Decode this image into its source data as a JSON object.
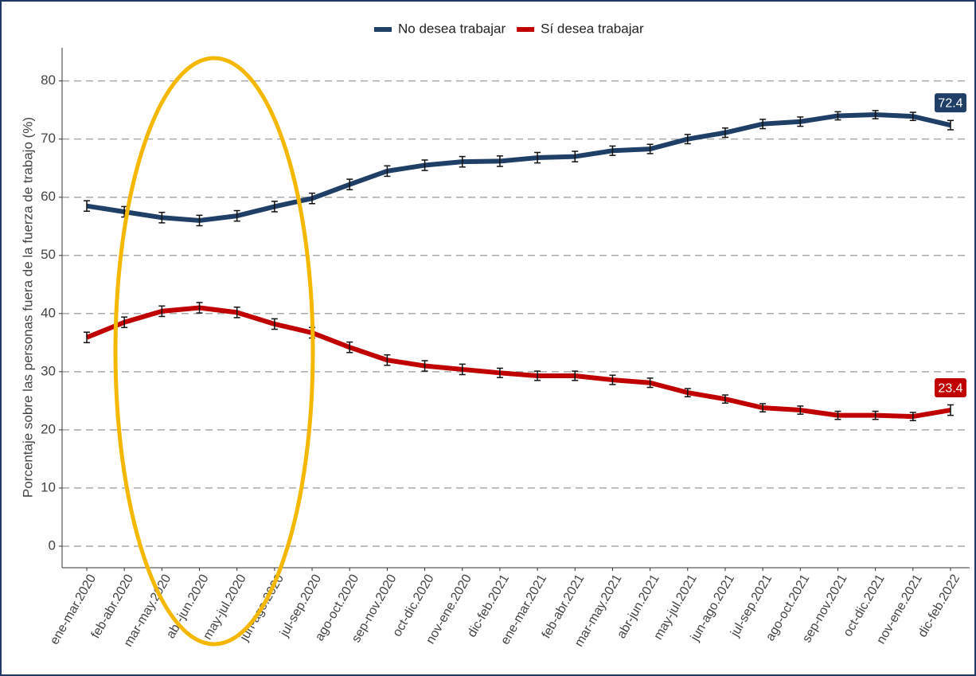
{
  "chart_data": {
    "type": "line",
    "y_label": "Porcentaje sobre las personas fuera de la fuerza de trabajo (%)",
    "categories": [
      "ene-mar.2020",
      "feb-abr.2020",
      "mar-may.2020",
      "abr-jun.2020",
      "may-jul.2020",
      "jun-ago.2020",
      "jul-sep.2020",
      "ago-oct.2020",
      "sep-nov.2020",
      "oct-dic.2020",
      "nov-ene.2020",
      "dic-feb.2021",
      "ene-mar.2021",
      "feb-abr.2021",
      "mar-may.2021",
      "abr-jun.2021",
      "may-jul.2021",
      "jun-ago.2021",
      "jul-sep.2021",
      "ago-oct.2021",
      "sep-nov.2021",
      "oct-dic.2021",
      "nov-ene.2021",
      "dic-feb.2022"
    ],
    "series": [
      {
        "name": "No desea trabajar",
        "color": "#1f3f66",
        "values": [
          58.5,
          57.5,
          56.5,
          56.0,
          56.8,
          58.4,
          59.8,
          62.2,
          64.5,
          65.5,
          66.1,
          66.2,
          66.8,
          67.0,
          68.0,
          68.3,
          70.0,
          71.1,
          72.6,
          73.0,
          74.0,
          74.2,
          73.9,
          72.4
        ],
        "errors": [
          0.9,
          0.9,
          0.9,
          0.9,
          0.9,
          0.9,
          0.9,
          0.9,
          0.9,
          0.9,
          0.9,
          0.9,
          0.9,
          0.9,
          0.8,
          0.8,
          0.8,
          0.8,
          0.8,
          0.8,
          0.7,
          0.7,
          0.7,
          0.8
        ]
      },
      {
        "name": "Sí desea trabajar",
        "color": "#c00000",
        "values": [
          35.9,
          38.5,
          40.4,
          41.0,
          40.2,
          38.2,
          36.7,
          34.2,
          32.0,
          31.0,
          30.4,
          29.8,
          29.3,
          29.3,
          28.6,
          28.1,
          26.4,
          25.3,
          23.8,
          23.4,
          22.5,
          22.5,
          22.3,
          23.4
        ],
        "errors": [
          0.9,
          0.9,
          0.9,
          0.9,
          0.9,
          0.9,
          0.9,
          0.9,
          0.9,
          0.9,
          0.9,
          0.8,
          0.8,
          0.8,
          0.8,
          0.8,
          0.7,
          0.7,
          0.7,
          0.7,
          0.7,
          0.7,
          0.7,
          0.9
        ]
      }
    ],
    "ylim": [
      -3.7,
      85.7
    ],
    "yticks": [
      0,
      10,
      20,
      30,
      40,
      50,
      60,
      70,
      80
    ],
    "grid": true,
    "legend": "top"
  }
}
